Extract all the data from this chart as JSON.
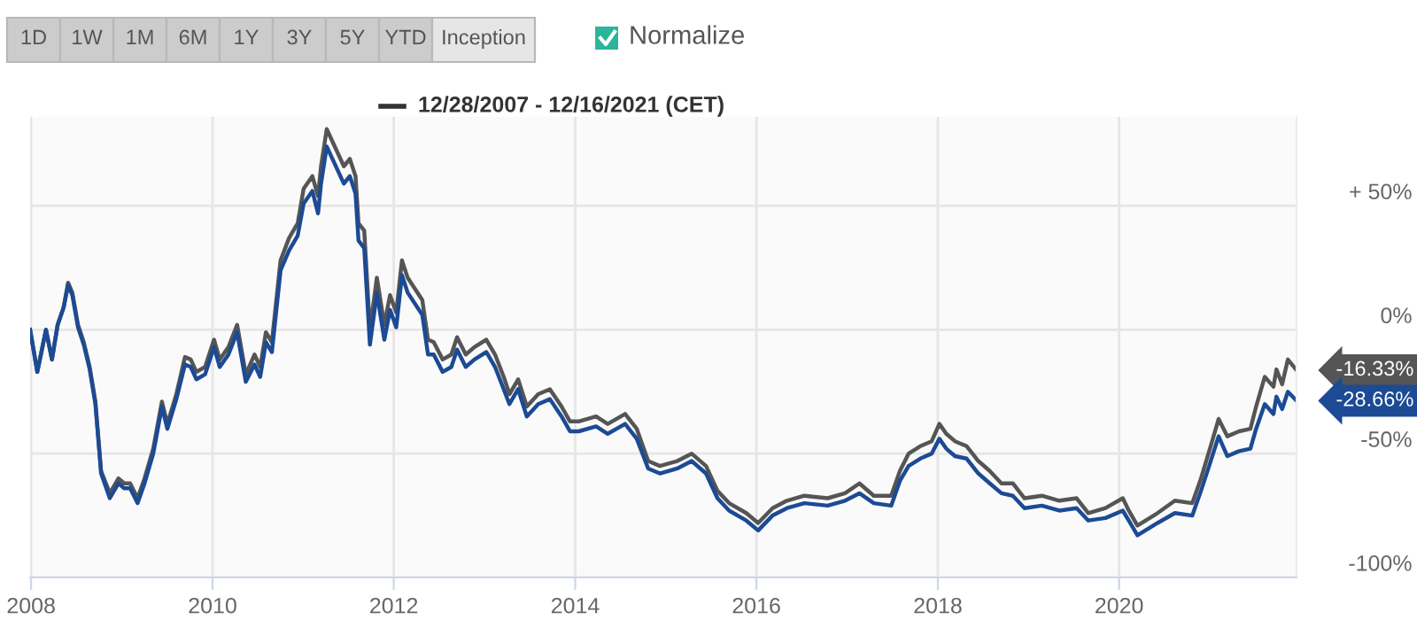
{
  "chart_data": {
    "type": "line",
    "annotations": [
      "1D",
      "1W",
      "1M",
      "6M",
      "1Y",
      "3Y",
      "5Y",
      "YTD",
      "Inception",
      "Normalize",
      "12/28/2007 - 12/16/2021 (CET)",
      {
        "text": "-16.33%",
        "x": "2021-12-16",
        "y": -16.33
      },
      {
        "text": "-28.66%",
        "x": "2021-12-16",
        "y": -28.66
      }
    ],
    "x": [
      "2007-12-28",
      "2008-01-26",
      "2008-03-01",
      "2008-03-25",
      "2008-04-17",
      "2008-05-11",
      "2008-05-29",
      "2008-06-15",
      "2008-07-08",
      "2008-07-31",
      "2008-08-24",
      "2008-09-16",
      "2008-10-09",
      "2008-11-13",
      "2008-12-18",
      "2009-01-10",
      "2009-02-03",
      "2009-03-05",
      "2009-04-02",
      "2009-05-07",
      "2009-06-11",
      "2009-07-03",
      "2009-08-08",
      "2009-09-12",
      "2009-10-05",
      "2009-10-28",
      "2009-12-02",
      "2010-01-07",
      "2010-01-30",
      "2010-03-06",
      "2010-04-10",
      "2010-05-15",
      "2010-06-19",
      "2010-07-12",
      "2010-08-04",
      "2010-08-28",
      "2010-10-02",
      "2010-11-05",
      "2010-12-10",
      "2011-01-03",
      "2011-02-07",
      "2011-03-02",
      "2011-03-14",
      "2011-04-06",
      "2011-04-29",
      "2011-05-22",
      "2011-06-14",
      "2011-07-08",
      "2011-07-31",
      "2011-08-12",
      "2011-09-04",
      "2011-09-27",
      "2011-10-25",
      "2011-11-24",
      "2011-12-17",
      "2012-01-11",
      "2012-02-03",
      "2012-02-26",
      "2012-04-25",
      "2012-05-18",
      "2012-06-10",
      "2012-07-16",
      "2012-08-20",
      "2012-09-12",
      "2012-10-17",
      "2012-11-21",
      "2013-01-08",
      "2013-02-12",
      "2013-03-19",
      "2013-04-11",
      "2013-05-16",
      "2013-06-20",
      "2013-08-05",
      "2013-09-21",
      "2013-11-07",
      "2013-12-11",
      "2014-01-15",
      "2014-03-26",
      "2014-05-12",
      "2014-07-21",
      "2014-09-06",
      "2014-10-22",
      "2014-12-08",
      "2015-02-16",
      "2015-04-15",
      "2015-06-12",
      "2015-07-28",
      "2015-09-13",
      "2015-11-21",
      "2016-01-08",
      "2016-03-06",
      "2016-05-03",
      "2016-07-12",
      "2016-10-14",
      "2016-12-23",
      "2017-02-19",
      "2017-04-18",
      "2017-06-27",
      "2017-08-01",
      "2017-09-05",
      "2017-10-22",
      "2017-12-07",
      "2018-01-07",
      "2018-02-04",
      "2018-03-11",
      "2018-04-27",
      "2018-06-13",
      "2018-07-29",
      "2018-09-14",
      "2018-10-30",
      "2018-12-16",
      "2019-02-24",
      "2019-05-05",
      "2019-07-14",
      "2019-08-30",
      "2019-11-07",
      "2020-01-16",
      "2020-02-09",
      "2020-03-15",
      "2020-06-04",
      "2020-08-13",
      "2020-10-22",
      "2020-11-26",
      "2021-01-01",
      "2021-02-05",
      "2021-03-12",
      "2021-04-28",
      "2021-06-13",
      "2021-07-06",
      "2021-08-10",
      "2021-09-14",
      "2021-09-26",
      "2021-10-19",
      "2021-11-11",
      "2021-12-16"
    ],
    "series": [
      {
        "color": "#555555",
        "values": [
          0,
          -17,
          0,
          -12,
          2,
          9,
          19,
          15,
          2,
          -5,
          -15,
          -29,
          -57,
          -66,
          -60,
          -62,
          -62,
          -68,
          -60,
          -48,
          -29,
          -38,
          -26,
          -11,
          -12,
          -17,
          -15,
          -4,
          -12,
          -7,
          2,
          -18,
          -10,
          -15,
          -1,
          -5,
          28,
          37,
          43,
          57,
          62,
          54,
          66,
          81,
          76,
          71,
          66,
          69,
          62,
          43,
          40,
          0,
          21,
          2,
          14,
          7,
          28,
          21,
          12,
          -4,
          -5,
          -12,
          -10,
          -3,
          -10,
          -7,
          -4,
          -10,
          -19,
          -26,
          -20,
          -31,
          -26,
          -24,
          -31,
          -37,
          -37,
          -35,
          -38,
          -34,
          -40,
          -53,
          -55,
          -53,
          -50,
          -55,
          -65,
          -70,
          -74,
          -78,
          -72,
          -69,
          -67,
          -68,
          -66,
          -62,
          -67,
          -67,
          -57,
          -50,
          -47,
          -45,
          -38,
          -42,
          -45,
          -47,
          -53,
          -57,
          -62,
          -62,
          -68,
          -67,
          -69,
          -68,
          -74,
          -72,
          -68,
          -73,
          -79,
          -74,
          -69,
          -70,
          -60,
          -48,
          -36,
          -43,
          -41,
          -40,
          -31,
          -19,
          -23,
          -16,
          -22,
          -12,
          -16.33
        ]
      },
      {
        "color": "#1c4a94",
        "values": [
          0,
          -17,
          0,
          -12,
          2,
          9,
          18,
          14,
          1,
          -6,
          -16,
          -30,
          -58,
          -68,
          -62,
          -64,
          -64,
          -70,
          -62,
          -50,
          -31,
          -40,
          -28,
          -14,
          -15,
          -20,
          -18,
          -7,
          -15,
          -10,
          -1,
          -21,
          -14,
          -19,
          -5,
          -9,
          24,
          32,
          38,
          51,
          56,
          47,
          59,
          74,
          69,
          64,
          59,
          62,
          55,
          36,
          33,
          -6,
          15,
          -4,
          8,
          1,
          22,
          15,
          6,
          -10,
          -10,
          -17,
          -15,
          -8,
          -15,
          -12,
          -9,
          -15,
          -24,
          -30,
          -24,
          -35,
          -30,
          -28,
          -35,
          -41,
          -41,
          -39,
          -42,
          -38,
          -44,
          -56,
          -58,
          -56,
          -53,
          -58,
          -68,
          -73,
          -77,
          -81,
          -75,
          -72,
          -70,
          -71,
          -69,
          -66,
          -70,
          -71,
          -61,
          -55,
          -52,
          -50,
          -44,
          -48,
          -51,
          -52,
          -58,
          -62,
          -66,
          -67,
          -72,
          -71,
          -73,
          -72,
          -77,
          -76,
          -73,
          -77,
          -83,
          -78,
          -74,
          -75,
          -65,
          -54,
          -43,
          -51,
          -49,
          -48,
          -40,
          -30,
          -34,
          -27,
          -32,
          -25,
          -28.66
        ]
      }
    ],
    "xlim": [
      "2007-12-28",
      "2021-12-16"
    ],
    "xticks": [
      {
        "value": "2008-01-01",
        "label": "2008"
      },
      {
        "value": "2010-01-01",
        "label": "2010"
      },
      {
        "value": "2012-01-01",
        "label": "2012"
      },
      {
        "value": "2014-01-01",
        "label": "2014"
      },
      {
        "value": "2016-01-01",
        "label": "2016"
      },
      {
        "value": "2018-01-01",
        "label": "2018"
      },
      {
        "value": "2020-01-01",
        "label": "2020"
      }
    ],
    "ylim": [
      -100,
      86
    ],
    "yticks": [
      {
        "value": 50,
        "label": "+ 50%"
      },
      {
        "value": 0,
        "label": "0%"
      },
      {
        "value": -50,
        "label": "-50%"
      },
      {
        "value": -100,
        "label": "-100%"
      }
    ],
    "grid": true,
    "line_style": "solid"
  }
}
